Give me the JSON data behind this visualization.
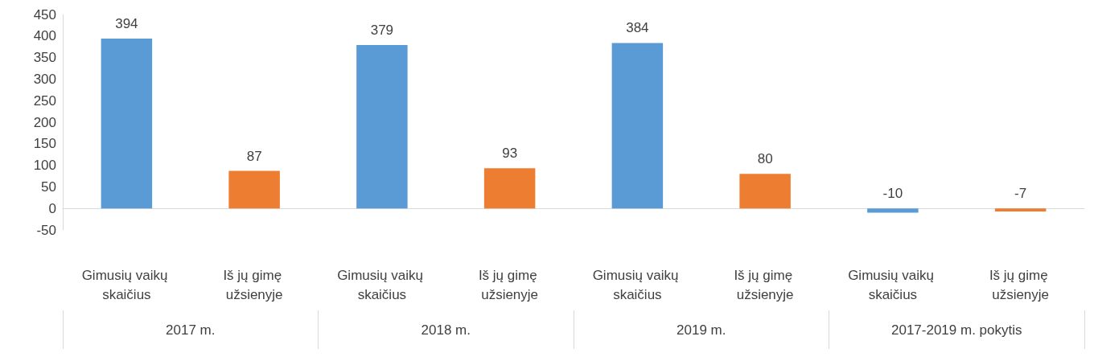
{
  "chart_data": {
    "type": "bar",
    "categories": [
      "Gimusių vaikų skaičius",
      "Iš jų gimę užsienyje",
      "Gimusių vaikų skaičius",
      "Iš jų gimę užsienyje",
      "Gimusių vaikų skaičius",
      "Iš jų gimę užsienyje",
      "Gimusių vaikų skaičius",
      "Iš jų gimę užsienyje"
    ],
    "values": [
      394,
      87,
      379,
      93,
      384,
      80,
      -10,
      -7
    ],
    "colors": [
      "#5b9bd5",
      "#ed7d31",
      "#5b9bd5",
      "#ed7d31",
      "#5b9bd5",
      "#ed7d31",
      "#5b9bd5",
      "#ed7d31"
    ],
    "annotations": [
      "2017 m.",
      "2018 m.",
      "2019 m.",
      "2017-2019 m. pokytis"
    ],
    "ylim": [
      -50,
      450
    ],
    "yticks": [
      -50,
      0,
      50,
      100,
      150,
      200,
      250,
      300,
      350,
      400,
      450
    ],
    "data_labels": true
  }
}
